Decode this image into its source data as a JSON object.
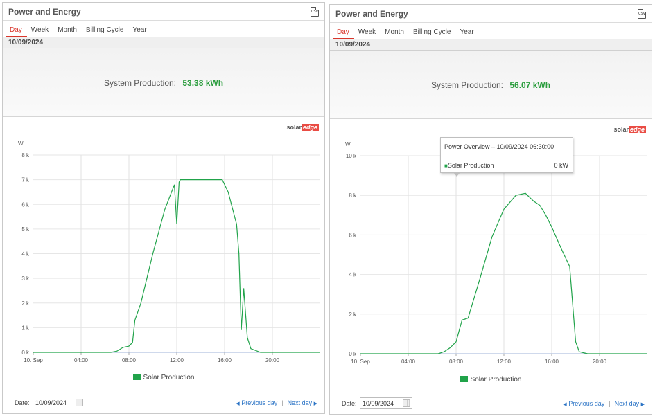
{
  "panels": [
    {
      "title": "Power and Energy",
      "csv_label": "CSV",
      "tabs": [
        "Day",
        "Week",
        "Month",
        "Billing Cycle",
        "Year"
      ],
      "active_tab": "Day",
      "date": "10/09/2024",
      "summary_label": "System Production:",
      "summary_value": "53.38 kWh",
      "brand": {
        "solar": "solar",
        "edge": "edge"
      },
      "legend": "Solar Production",
      "footer": {
        "date_label": "Date:",
        "date_value": "10/09/2024",
        "prev": "Previous day",
        "sep": "|",
        "next": "Next day"
      }
    },
    {
      "title": "Power and Energy",
      "csv_label": "CSV",
      "tabs": [
        "Day",
        "Week",
        "Month",
        "Billing Cycle",
        "Year"
      ],
      "active_tab": "Day",
      "date": "10/09/2024",
      "summary_label": "System Production:",
      "summary_value": "56.07 kWh",
      "brand": {
        "solar": "solar",
        "edge": "edge"
      },
      "legend": "Solar Production",
      "tooltip": {
        "title": "Power Overview – 10/09/2024 06:30:00",
        "series": "Solar Production",
        "value": "0 kW"
      },
      "footer": {
        "date_label": "Date:",
        "date_value": "10/09/2024",
        "prev": "Previous day",
        "sep": "|",
        "next": "Next day"
      }
    }
  ],
  "colors": {
    "accent": "#d9362c",
    "series": "#21a34a",
    "value": "#2a9d3d",
    "link": "#2a73c5"
  },
  "chart_data": [
    {
      "type": "line",
      "ylabel": "W",
      "ylim": [
        0,
        8000
      ],
      "yticks": [
        "0 k",
        "1 k",
        "2 k",
        "3 k",
        "4 k",
        "5 k",
        "6 k",
        "7 k",
        "8 k"
      ],
      "xticks": [
        "10. Sep",
        "04:00",
        "08:00",
        "12:00",
        "16:00",
        "20:00"
      ],
      "xlim_hours": [
        0,
        24
      ],
      "series": [
        {
          "name": "Solar Production",
          "points": [
            [
              0,
              0
            ],
            [
              6.5,
              0
            ],
            [
              7,
              50
            ],
            [
              7.5,
              200
            ],
            [
              8,
              250
            ],
            [
              8.3,
              400
            ],
            [
              8.5,
              1300
            ],
            [
              9,
              2000
            ],
            [
              10,
              4000
            ],
            [
              11,
              5800
            ],
            [
              11.8,
              6800
            ],
            [
              12,
              5200
            ],
            [
              12.2,
              6900
            ],
            [
              12.3,
              7000
            ],
            [
              14,
              7000
            ],
            [
              15.8,
              7000
            ],
            [
              16.3,
              6500
            ],
            [
              17,
              5200
            ],
            [
              17.2,
              4000
            ],
            [
              17.4,
              900
            ],
            [
              17.6,
              2600
            ],
            [
              17.9,
              600
            ],
            [
              18.2,
              150
            ],
            [
              19,
              0
            ],
            [
              24,
              0
            ]
          ]
        }
      ]
    },
    {
      "type": "line",
      "ylabel": "W",
      "ylim": [
        0,
        10000
      ],
      "yticks": [
        "0 k",
        "2 k",
        "4 k",
        "6 k",
        "8 k",
        "10 k"
      ],
      "xticks": [
        "10. Sep",
        "04:00",
        "08:00",
        "12:00",
        "16:00",
        "20:00"
      ],
      "xlim_hours": [
        0,
        24
      ],
      "series": [
        {
          "name": "Solar Production",
          "points": [
            [
              0,
              0
            ],
            [
              6.5,
              0
            ],
            [
              7,
              100
            ],
            [
              7.5,
              300
            ],
            [
              8,
              600
            ],
            [
              8.5,
              1700
            ],
            [
              9,
              1800
            ],
            [
              10,
              3800
            ],
            [
              11,
              5900
            ],
            [
              12,
              7300
            ],
            [
              13,
              8000
            ],
            [
              13.8,
              8100
            ],
            [
              14.5,
              7700
            ],
            [
              15,
              7500
            ],
            [
              15.5,
              7000
            ],
            [
              16,
              6400
            ],
            [
              16.8,
              5300
            ],
            [
              17.5,
              4400
            ],
            [
              18,
              600
            ],
            [
              18.3,
              100
            ],
            [
              19,
              0
            ],
            [
              24,
              0
            ]
          ]
        }
      ]
    }
  ]
}
